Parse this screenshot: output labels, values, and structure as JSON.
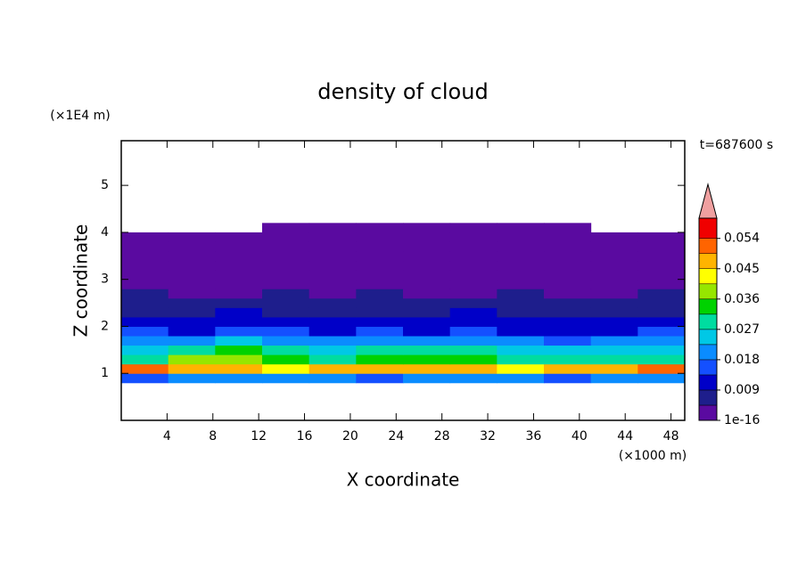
{
  "chart_data": {
    "type": "heatmap",
    "title": "density of cloud",
    "annotation": "t=687600 s",
    "xlabel": "X coordinate",
    "ylabel": "Z coordinate",
    "x_unit": "(×1000 m)",
    "y_unit": "(×1E4 m)",
    "xlim": [
      0,
      49.2
    ],
    "ylim": [
      0,
      5.95
    ],
    "xticks": [
      4,
      8,
      12,
      16,
      20,
      24,
      28,
      32,
      36,
      40,
      44,
      48
    ],
    "yticks": [
      1,
      2,
      3,
      4,
      5
    ],
    "x": [
      2.05,
      6.15,
      10.25,
      14.35,
      18.45,
      22.55,
      26.65,
      30.75,
      34.85,
      38.95,
      43.05,
      47.15
    ],
    "y": [
      0.9,
      1.1,
      1.3,
      1.5,
      1.7,
      1.9,
      2.1,
      2.3,
      2.5,
      2.7,
      2.9,
      3.1,
      3.3,
      3.5,
      3.7,
      3.9,
      4.1
    ],
    "values": [
      [
        0.016,
        0.02,
        0.018,
        0.022,
        0.019,
        0.017,
        0.021,
        0.018,
        0.02,
        0.017,
        0.019,
        0.022
      ],
      [
        0.05,
        0.046,
        0.048,
        0.044,
        0.047,
        0.045,
        0.049,
        0.046,
        0.044,
        0.047,
        0.045,
        0.05
      ],
      [
        0.03,
        0.036,
        0.038,
        0.034,
        0.03,
        0.032,
        0.033,
        0.035,
        0.03,
        0.028,
        0.031,
        0.029
      ],
      [
        0.025,
        0.03,
        0.033,
        0.029,
        0.026,
        0.027,
        0.028,
        0.03,
        0.025,
        0.024,
        0.026,
        0.023
      ],
      [
        0.019,
        0.022,
        0.024,
        0.021,
        0.018,
        0.02,
        0.021,
        0.022,
        0.019,
        0.017,
        0.02,
        0.018
      ],
      [
        0.014,
        0.013,
        0.016,
        0.015,
        0.012,
        0.014,
        0.013,
        0.015,
        0.012,
        0.011,
        0.013,
        0.014
      ],
      [
        0.011,
        0.009,
        0.012,
        0.01,
        0.011,
        0.009,
        0.01,
        0.012,
        0.01,
        0.009,
        0.011,
        0.01
      ],
      [
        0.008,
        0.007,
        0.009,
        0.008,
        0.007,
        0.008,
        0.007,
        0.009,
        0.008,
        0.007,
        0.008,
        0.007
      ],
      [
        0.006,
        0.005,
        0.006,
        0.007,
        0.005,
        0.006,
        0.005,
        0.006,
        0.005,
        0.006,
        0.005,
        0.006
      ],
      [
        0.005,
        0.004,
        0.004,
        0.005,
        0.004,
        0.005,
        0.004,
        0.004,
        0.005,
        0.004,
        0.004,
        0.005
      ],
      [
        0.003,
        0.004,
        0.003,
        0.003,
        0.004,
        0.003,
        0.003,
        0.004,
        0.003,
        0.003,
        0.004,
        0.003
      ],
      [
        0.002,
        0.003,
        0.002,
        0.003,
        0.002,
        0.002,
        0.003,
        0.002,
        0.002,
        0.003,
        0.002,
        0.002
      ],
      [
        0.002,
        0.001,
        0.002,
        0.001,
        0.002,
        0.001,
        0.002,
        0.001,
        0.002,
        0.001,
        0.002,
        0.001
      ],
      [
        0.001,
        0.001,
        0.001,
        0.001,
        0.001,
        0.001,
        0.001,
        0.001,
        0.001,
        0.001,
        0.001,
        0.001
      ],
      [
        0.001,
        0.001,
        0.001,
        0.001,
        0.001,
        0.001,
        0.001,
        0.001,
        0.001,
        0.001,
        0.001,
        0.001
      ],
      [
        0.0005,
        0.0005,
        0.0005,
        0.0005,
        0.0005,
        0.0005,
        0.0005,
        0.0005,
        0.0005,
        0.0005,
        0.0005,
        0.0005
      ],
      [
        null,
        null,
        null,
        0.0005,
        0.0005,
        0.0005,
        0.0005,
        0.0005,
        0.0005,
        0.0005,
        null,
        null
      ]
    ],
    "colorbar": {
      "lim": [
        1e-16,
        0.06
      ],
      "levels": [
        1e-16,
        0.0045,
        0.009,
        0.0135,
        0.018,
        0.0225,
        0.027,
        0.0315,
        0.036,
        0.0405,
        0.045,
        0.0495,
        0.054
      ],
      "colors": [
        "#5a0aa0",
        "#1e1e8c",
        "#0000c8",
        "#1450ff",
        "#0a8cff",
        "#00c8e6",
        "#00dca0",
        "#00d200",
        "#96e600",
        "#ffff00",
        "#ffb400",
        "#ff6400",
        "#f00000"
      ],
      "overflow_color": "#f0a0a0",
      "ticks": [
        1e-16,
        0.009,
        0.018,
        0.027,
        0.036,
        0.045,
        0.054
      ]
    }
  }
}
